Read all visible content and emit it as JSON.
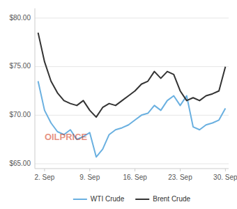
{
  "chart_data": {
    "type": "line",
    "annotation": "OILPRICE",
    "x": [
      0,
      1,
      2,
      3,
      4,
      5,
      6,
      7,
      8,
      9,
      10,
      11,
      12,
      13,
      14,
      15,
      16,
      17,
      18,
      19,
      20,
      21,
      22,
      23,
      24,
      25,
      26,
      27,
      28,
      29
    ],
    "series": [
      {
        "name": "WTI Crude",
        "color": "#6ab0e0",
        "values": [
          73.5,
          70.5,
          69.2,
          68.3,
          68.0,
          68.5,
          67.5,
          67.8,
          68.2,
          65.7,
          66.5,
          68.0,
          68.5,
          68.7,
          69.0,
          69.5,
          70.0,
          70.2,
          71.0,
          70.5,
          71.5,
          72.0,
          71.0,
          72.0,
          68.8,
          68.5,
          69.0,
          69.2,
          69.5,
          70.7
        ]
      },
      {
        "name": "Brent Crude",
        "color": "#333333",
        "values": [
          78.5,
          75.5,
          73.5,
          72.3,
          71.5,
          71.2,
          71.0,
          71.5,
          70.5,
          69.8,
          70.8,
          71.2,
          71.0,
          71.5,
          72.0,
          72.5,
          73.2,
          73.5,
          74.5,
          73.8,
          74.5,
          74.2,
          72.5,
          71.5,
          71.8,
          71.5,
          72.0,
          72.2,
          72.5,
          75.0
        ]
      }
    ],
    "xlim": [
      -0.5,
      29.5
    ],
    "xticks": [
      {
        "value": 1,
        "label": "2. Sep"
      },
      {
        "value": 8,
        "label": "9. Sep"
      },
      {
        "value": 15,
        "label": "16. Sep"
      },
      {
        "value": 22,
        "label": "23. Sep"
      },
      {
        "value": 29,
        "label": "30. Sep"
      }
    ],
    "ylim": [
      64.5,
      81.0
    ],
    "yticks": [
      {
        "value": 65.0,
        "label": "$65.00"
      },
      {
        "value": 70.0,
        "label": "$70.00"
      },
      {
        "value": 75.0,
        "label": "$75.00"
      },
      {
        "value": 80.0,
        "label": "$80.00"
      }
    ],
    "grid": true,
    "legend": "bottom"
  }
}
